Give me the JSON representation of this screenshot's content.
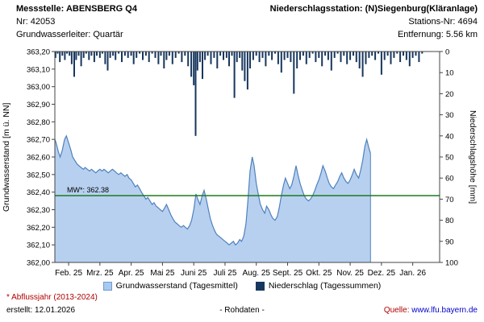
{
  "header": {
    "left": {
      "title": "Messstelle: ABENSBERG Q4",
      "nr": "Nr: 42053",
      "aquifer": "Grundwasserleiter: Quartär"
    },
    "right": {
      "title": "Niederschlagsstation: (N)Siegenburg(Kläranlage)",
      "nr": "Stations-Nr: 4694",
      "distance": "Entfernung: 5.56 km"
    }
  },
  "chart_data": {
    "type": "area",
    "title": "",
    "y_left": {
      "label": "Grundwasserstand [m ü. NN]",
      "min": 362.0,
      "max": 363.2,
      "tick_values": [
        363.2,
        363.1,
        363.0,
        362.9,
        362.8,
        362.7,
        362.6,
        362.5,
        362.4,
        362.3,
        362.2,
        362.1,
        362.0
      ],
      "tick_labels": [
        "363,20",
        "363,10",
        "363,00",
        "362,90",
        "362,80",
        "362,70",
        "362,60",
        "362,50",
        "362,40",
        "362,30",
        "362,20",
        "362,10",
        "362,00"
      ]
    },
    "y_right": {
      "label": "Niederschlagshöhe [mm]",
      "min": 0,
      "max": 100,
      "ticks": [
        0,
        10,
        20,
        30,
        40,
        50,
        60,
        70,
        80,
        90,
        100
      ]
    },
    "x": {
      "min": -0.44,
      "max": 11.86,
      "tick_values": [
        0,
        1,
        2,
        3,
        4,
        5,
        6,
        7,
        8,
        9,
        10,
        11
      ],
      "tick_labels": [
        "Feb. 25",
        "Mrz. 25",
        "Apr. 25",
        "Mai 25",
        "Juni 25",
        "Juli 25",
        "Aug. 25",
        "Sept. 25",
        "Okt. 25",
        "Nov. 25",
        "Dez. 25",
        "Jan. 26"
      ]
    },
    "grid": false,
    "mean_line": {
      "label": "MW*: 362.38",
      "value": 362.38,
      "color": "#1c7a1c"
    },
    "series": [
      {
        "name": "Grundwasserstand (Tagesmittel)",
        "axis": "left",
        "fill": "#b7d0f0",
        "stroke": "#4f81bd",
        "points": [
          [
            -0.44,
            362.7
          ],
          [
            -0.4,
            362.68
          ],
          [
            -0.33,
            362.63
          ],
          [
            -0.27,
            362.6
          ],
          [
            -0.2,
            362.64
          ],
          [
            -0.13,
            362.7
          ],
          [
            -0.07,
            362.72
          ],
          [
            0.0,
            362.68
          ],
          [
            0.07,
            362.64
          ],
          [
            0.13,
            362.6
          ],
          [
            0.2,
            362.58
          ],
          [
            0.27,
            362.56
          ],
          [
            0.33,
            362.55
          ],
          [
            0.4,
            362.54
          ],
          [
            0.47,
            362.53
          ],
          [
            0.53,
            362.54
          ],
          [
            0.6,
            362.53
          ],
          [
            0.67,
            362.52
          ],
          [
            0.73,
            362.53
          ],
          [
            0.8,
            362.52
          ],
          [
            0.87,
            362.51
          ],
          [
            0.93,
            362.52
          ],
          [
            1.0,
            362.53
          ],
          [
            1.07,
            362.52
          ],
          [
            1.13,
            362.53
          ],
          [
            1.2,
            362.52
          ],
          [
            1.27,
            362.51
          ],
          [
            1.33,
            362.52
          ],
          [
            1.4,
            362.53
          ],
          [
            1.47,
            362.52
          ],
          [
            1.53,
            362.51
          ],
          [
            1.6,
            362.5
          ],
          [
            1.67,
            362.51
          ],
          [
            1.73,
            362.5
          ],
          [
            1.8,
            362.49
          ],
          [
            1.87,
            362.5
          ],
          [
            1.93,
            362.48
          ],
          [
            2.0,
            362.47
          ],
          [
            2.07,
            362.45
          ],
          [
            2.13,
            362.43
          ],
          [
            2.2,
            362.44
          ],
          [
            2.27,
            362.42
          ],
          [
            2.33,
            362.4
          ],
          [
            2.4,
            362.38
          ],
          [
            2.47,
            362.36
          ],
          [
            2.53,
            362.37
          ],
          [
            2.6,
            362.35
          ],
          [
            2.67,
            362.33
          ],
          [
            2.73,
            362.34
          ],
          [
            2.8,
            362.32
          ],
          [
            2.87,
            362.31
          ],
          [
            2.93,
            362.3
          ],
          [
            3.0,
            362.29
          ],
          [
            3.07,
            362.31
          ],
          [
            3.13,
            362.33
          ],
          [
            3.2,
            362.3
          ],
          [
            3.27,
            362.27
          ],
          [
            3.33,
            362.25
          ],
          [
            3.4,
            362.23
          ],
          [
            3.47,
            362.22
          ],
          [
            3.53,
            362.21
          ],
          [
            3.6,
            362.2
          ],
          [
            3.67,
            362.21
          ],
          [
            3.73,
            362.2
          ],
          [
            3.8,
            362.19
          ],
          [
            3.87,
            362.21
          ],
          [
            3.93,
            362.24
          ],
          [
            4.0,
            362.3
          ],
          [
            4.07,
            362.39
          ],
          [
            4.13,
            362.36
          ],
          [
            4.2,
            362.33
          ],
          [
            4.27,
            362.38
          ],
          [
            4.33,
            362.41
          ],
          [
            4.4,
            362.36
          ],
          [
            4.47,
            362.3
          ],
          [
            4.53,
            362.25
          ],
          [
            4.6,
            362.21
          ],
          [
            4.67,
            362.18
          ],
          [
            4.73,
            362.16
          ],
          [
            4.8,
            362.15
          ],
          [
            4.87,
            362.14
          ],
          [
            4.93,
            362.13
          ],
          [
            5.0,
            362.12
          ],
          [
            5.07,
            362.11
          ],
          [
            5.13,
            362.1
          ],
          [
            5.2,
            362.11
          ],
          [
            5.27,
            362.12
          ],
          [
            5.33,
            362.1
          ],
          [
            5.4,
            362.11
          ],
          [
            5.47,
            362.13
          ],
          [
            5.53,
            362.12
          ],
          [
            5.6,
            362.15
          ],
          [
            5.67,
            362.22
          ],
          [
            5.73,
            362.35
          ],
          [
            5.8,
            362.52
          ],
          [
            5.87,
            362.6
          ],
          [
            5.93,
            362.55
          ],
          [
            6.0,
            362.45
          ],
          [
            6.07,
            362.38
          ],
          [
            6.13,
            362.33
          ],
          [
            6.2,
            362.3
          ],
          [
            6.27,
            362.28
          ],
          [
            6.33,
            362.32
          ],
          [
            6.4,
            362.3
          ],
          [
            6.47,
            362.27
          ],
          [
            6.53,
            362.25
          ],
          [
            6.6,
            362.24
          ],
          [
            6.67,
            362.26
          ],
          [
            6.73,
            362.31
          ],
          [
            6.8,
            362.38
          ],
          [
            6.87,
            362.44
          ],
          [
            6.93,
            362.48
          ],
          [
            7.0,
            362.45
          ],
          [
            7.07,
            362.42
          ],
          [
            7.13,
            362.44
          ],
          [
            7.2,
            362.49
          ],
          [
            7.27,
            362.55
          ],
          [
            7.33,
            362.5
          ],
          [
            7.4,
            362.45
          ],
          [
            7.47,
            362.41
          ],
          [
            7.53,
            362.38
          ],
          [
            7.6,
            362.36
          ],
          [
            7.67,
            362.35
          ],
          [
            7.73,
            362.36
          ],
          [
            7.8,
            362.38
          ],
          [
            7.87,
            362.41
          ],
          [
            7.93,
            362.44
          ],
          [
            8.0,
            362.47
          ],
          [
            8.07,
            362.51
          ],
          [
            8.13,
            362.55
          ],
          [
            8.2,
            362.52
          ],
          [
            8.27,
            362.48
          ],
          [
            8.33,
            362.45
          ],
          [
            8.4,
            362.43
          ],
          [
            8.47,
            362.42
          ],
          [
            8.53,
            362.44
          ],
          [
            8.6,
            362.46
          ],
          [
            8.67,
            362.49
          ],
          [
            8.73,
            362.51
          ],
          [
            8.8,
            362.48
          ],
          [
            8.87,
            362.46
          ],
          [
            8.93,
            362.45
          ],
          [
            9.0,
            362.47
          ],
          [
            9.07,
            362.5
          ],
          [
            9.13,
            362.53
          ],
          [
            9.2,
            362.5
          ],
          [
            9.27,
            362.48
          ],
          [
            9.33,
            362.52
          ],
          [
            9.4,
            362.58
          ],
          [
            9.47,
            362.66
          ],
          [
            9.53,
            362.7
          ],
          [
            9.6,
            362.65
          ],
          [
            9.65,
            362.62
          ]
        ]
      },
      {
        "name": "Niederschlag (Tagessummen)",
        "axis": "right",
        "color": "#17375e",
        "points": [
          [
            -0.42,
            3
          ],
          [
            -0.35,
            1
          ],
          [
            -0.28,
            5
          ],
          [
            -0.2,
            2
          ],
          [
            -0.12,
            4
          ],
          [
            -0.05,
            1
          ],
          [
            0.03,
            2
          ],
          [
            0.1,
            6
          ],
          [
            0.18,
            12
          ],
          [
            0.24,
            4
          ],
          [
            0.32,
            2
          ],
          [
            0.4,
            7
          ],
          [
            0.48,
            3
          ],
          [
            0.56,
            1
          ],
          [
            0.65,
            4
          ],
          [
            0.73,
            2
          ],
          [
            0.82,
            5
          ],
          [
            0.9,
            2
          ],
          [
            1.0,
            3
          ],
          [
            1.08,
            1
          ],
          [
            1.17,
            6
          ],
          [
            1.25,
            9
          ],
          [
            1.33,
            3
          ],
          [
            1.42,
            2
          ],
          [
            1.5,
            4
          ],
          [
            1.6,
            1
          ],
          [
            1.7,
            5
          ],
          [
            1.8,
            2
          ],
          [
            1.9,
            3
          ],
          [
            2.0,
            2
          ],
          [
            2.08,
            6
          ],
          [
            2.17,
            3
          ],
          [
            2.27,
            1
          ],
          [
            2.37,
            4
          ],
          [
            2.47,
            2
          ],
          [
            2.57,
            5
          ],
          [
            2.67,
            1
          ],
          [
            2.77,
            3
          ],
          [
            2.87,
            6
          ],
          [
            2.95,
            2
          ],
          [
            3.05,
            8
          ],
          [
            3.13,
            4
          ],
          [
            3.22,
            2
          ],
          [
            3.32,
            6
          ],
          [
            3.42,
            3
          ],
          [
            3.52,
            1
          ],
          [
            3.62,
            5
          ],
          [
            3.72,
            2
          ],
          [
            3.82,
            7
          ],
          [
            3.92,
            12
          ],
          [
            4.0,
            16
          ],
          [
            4.06,
            40
          ],
          [
            4.12,
            9
          ],
          [
            4.2,
            5
          ],
          [
            4.28,
            13
          ],
          [
            4.36,
            4
          ],
          [
            4.45,
            2
          ],
          [
            4.55,
            6
          ],
          [
            4.65,
            3
          ],
          [
            4.75,
            8
          ],
          [
            4.85,
            2
          ],
          [
            4.95,
            4
          ],
          [
            5.05,
            3
          ],
          [
            5.13,
            7
          ],
          [
            5.22,
            2
          ],
          [
            5.3,
            22
          ],
          [
            5.38,
            5
          ],
          [
            5.47,
            3
          ],
          [
            5.55,
            9
          ],
          [
            5.63,
            14
          ],
          [
            5.72,
            18
          ],
          [
            5.8,
            8
          ],
          [
            5.9,
            4
          ],
          [
            6.0,
            2
          ],
          [
            6.1,
            5
          ],
          [
            6.2,
            3
          ],
          [
            6.3,
            7
          ],
          [
            6.4,
            2
          ],
          [
            6.5,
            4
          ],
          [
            6.6,
            1
          ],
          [
            6.7,
            6
          ],
          [
            6.8,
            10
          ],
          [
            6.9,
            4
          ],
          [
            7.0,
            3
          ],
          [
            7.1,
            5
          ],
          [
            7.2,
            20
          ],
          [
            7.3,
            8
          ],
          [
            7.4,
            4
          ],
          [
            7.5,
            2
          ],
          [
            7.6,
            6
          ],
          [
            7.7,
            3
          ],
          [
            7.8,
            1
          ],
          [
            7.9,
            5
          ],
          [
            8.0,
            3
          ],
          [
            8.1,
            7
          ],
          [
            8.2,
            2
          ],
          [
            8.3,
            4
          ],
          [
            8.4,
            9
          ],
          [
            8.5,
            3
          ],
          [
            8.6,
            1
          ],
          [
            8.7,
            5
          ],
          [
            8.8,
            2
          ],
          [
            8.9,
            6
          ],
          [
            9.0,
            4
          ],
          [
            9.1,
            2
          ],
          [
            9.2,
            5
          ],
          [
            9.3,
            8
          ],
          [
            9.4,
            12
          ],
          [
            9.5,
            6
          ],
          [
            9.6,
            3
          ],
          [
            9.7,
            2
          ],
          [
            9.8,
            4
          ],
          [
            9.9,
            1
          ],
          [
            10.0,
            11
          ],
          [
            10.1,
            4
          ],
          [
            10.2,
            2
          ],
          [
            10.3,
            6
          ],
          [
            10.4,
            3
          ],
          [
            10.5,
            1
          ],
          [
            10.6,
            5
          ],
          [
            10.7,
            2
          ],
          [
            10.8,
            4
          ],
          [
            10.9,
            7
          ],
          [
            11.0,
            3
          ],
          [
            11.1,
            2
          ],
          [
            11.2,
            5
          ],
          [
            11.3,
            1
          ]
        ]
      }
    ]
  },
  "legend": [
    {
      "label": "Grundwasserstand (Tagesmittel)",
      "color": "#a9c9ee"
    },
    {
      "label": "Niederschlag (Tagessummen)",
      "color": "#17375e"
    }
  ],
  "footer": {
    "note": "* Abflussjahr (2013-2024)",
    "created": "erstellt:  12.01.2026",
    "center": "- Rohdaten -",
    "source_label": "Quelle:",
    "source_link": "www.lfu.bayern.de"
  }
}
